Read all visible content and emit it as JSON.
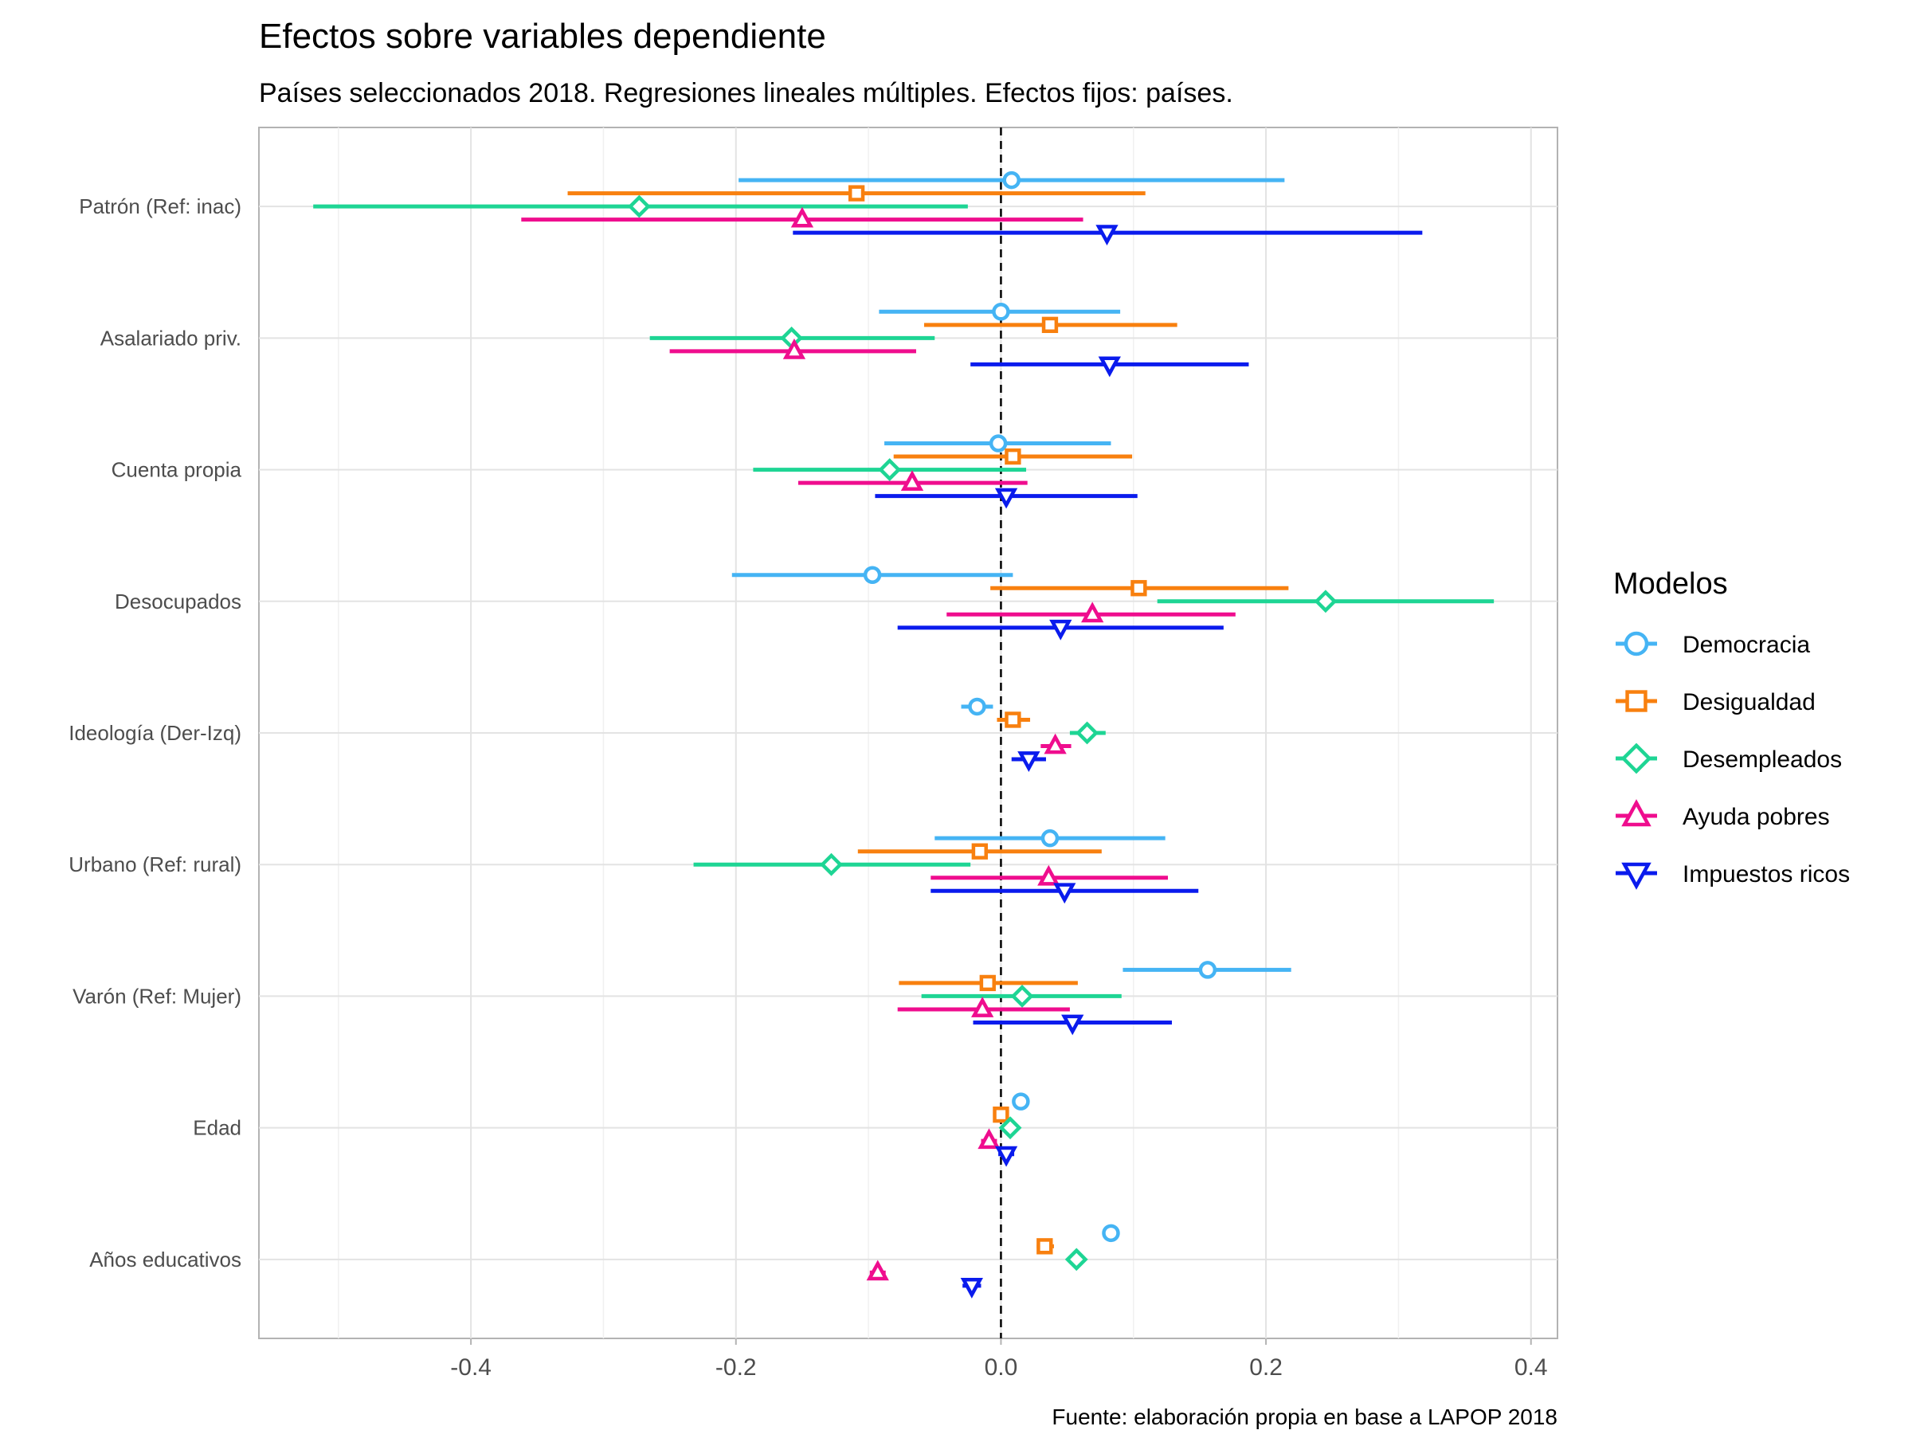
{
  "chart_data": {
    "type": "scatter",
    "subtype": "coefficient-plot-with-error-bars",
    "title": "Efectos sobre variables dependiente",
    "subtitle": "Países seleccionados 2018. Regresiones lineales múltiples. Efectos fijos: países.",
    "caption": "Fuente: elaboración propia en base a LAPOP 2018",
    "xlabel": "",
    "ylabel": "",
    "xlim": [
      -0.56,
      0.42
    ],
    "x_ticks": [
      -0.4,
      -0.2,
      0.0,
      0.2,
      0.4
    ],
    "x_tick_labels": [
      "-0.4",
      "-0.2",
      "0.0",
      "0.2",
      "0.4"
    ],
    "reference_line": 0,
    "grid": true,
    "legend_title": "Modelos",
    "legend_position": "right",
    "categories": [
      "Patrón (Ref: inac)",
      "Asalariado priv.",
      "Cuenta propia",
      "Desocupados",
      "Ideología (Der-Izq)",
      "Urbano (Ref: rural)",
      "Varón (Ref: Mujer)",
      "Edad",
      "Años educativos"
    ],
    "series": [
      {
        "name": "Democracia",
        "color": "#45b4f4",
        "marker": "circle",
        "estimates": [
          0.008,
          0.0,
          -0.002,
          -0.097,
          -0.018,
          0.037,
          0.156,
          0.015,
          0.083
        ],
        "ci_low": [
          -0.198,
          -0.092,
          -0.088,
          -0.203,
          -0.03,
          -0.05,
          0.092,
          0.009,
          0.078
        ],
        "ci_high": [
          0.214,
          0.09,
          0.083,
          0.009,
          -0.006,
          0.124,
          0.219,
          0.021,
          0.089
        ]
      },
      {
        "name": "Desigualdad",
        "color": "#f8800f",
        "marker": "square",
        "estimates": [
          -0.109,
          0.037,
          0.009,
          0.104,
          0.009,
          -0.016,
          -0.01,
          0.0,
          0.033
        ],
        "ci_low": [
          -0.327,
          -0.058,
          -0.081,
          -0.008,
          -0.003,
          -0.108,
          -0.077,
          -0.006,
          0.027
        ],
        "ci_high": [
          0.109,
          0.133,
          0.099,
          0.217,
          0.022,
          0.076,
          0.058,
          0.006,
          0.04
        ]
      },
      {
        "name": "Desempleados",
        "color": "#1ed594",
        "marker": "diamond",
        "estimates": [
          -0.273,
          -0.158,
          -0.084,
          0.245,
          0.065,
          -0.128,
          0.016,
          0.007,
          0.057
        ],
        "ci_low": [
          -0.519,
          -0.265,
          -0.187,
          0.118,
          0.052,
          -0.232,
          -0.06,
          0.001,
          0.05
        ],
        "ci_high": [
          -0.025,
          -0.05,
          0.019,
          0.372,
          0.079,
          -0.023,
          0.091,
          0.013,
          0.064
        ]
      },
      {
        "name": "Ayuda pobres",
        "color": "#ef0d8e",
        "marker": "triangle-up",
        "estimates": [
          -0.15,
          -0.156,
          -0.067,
          0.069,
          0.041,
          0.036,
          -0.014,
          -0.009,
          -0.093
        ],
        "ci_low": [
          -0.362,
          -0.25,
          -0.153,
          -0.041,
          0.03,
          -0.053,
          -0.078,
          -0.015,
          -0.099
        ],
        "ci_high": [
          0.062,
          -0.064,
          0.02,
          0.177,
          0.053,
          0.126,
          0.052,
          -0.003,
          -0.087
        ]
      },
      {
        "name": "Impuestos ricos",
        "color": "#0a1bed",
        "marker": "triangle-down",
        "estimates": [
          0.08,
          0.082,
          0.004,
          0.045,
          0.021,
          0.048,
          0.054,
          0.004,
          -0.022
        ],
        "ci_low": [
          -0.157,
          -0.023,
          -0.095,
          -0.078,
          0.008,
          -0.053,
          -0.021,
          -0.002,
          -0.029
        ],
        "ci_high": [
          0.318,
          0.187,
          0.103,
          0.168,
          0.034,
          0.149,
          0.129,
          0.01,
          -0.015
        ]
      }
    ]
  }
}
